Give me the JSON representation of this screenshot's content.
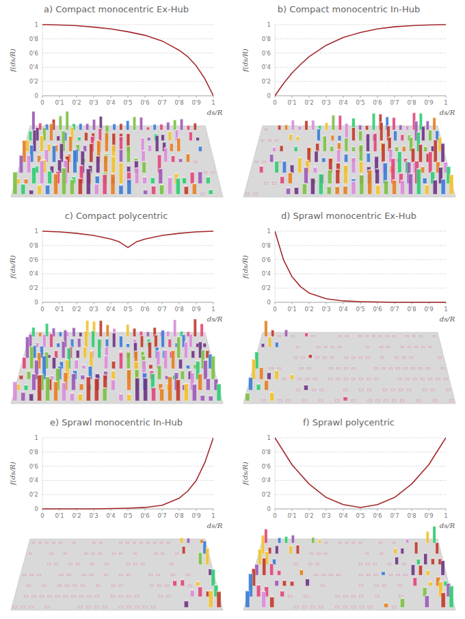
{
  "chart_data": [
    {
      "type": "line",
      "title": "a) Compact monocentric Ex-Hub",
      "x_label": "ds/R",
      "y_label": "f(ds/R)",
      "xlim": [
        0,
        1
      ],
      "ylim": [
        0,
        1
      ],
      "xticks": [
        0,
        {
          "value": 0.1,
          "label": "0'1"
        },
        {
          "value": 0.2,
          "label": "0'2"
        },
        {
          "value": 0.3,
          "label": "0'3"
        },
        {
          "value": 0.4,
          "label": "0'4"
        },
        {
          "value": 0.5,
          "label": "0'5"
        },
        {
          "value": 0.6,
          "label": "0'6"
        },
        {
          "value": 0.7,
          "label": "0'7"
        },
        {
          "value": 0.8,
          "label": "0'8"
        },
        {
          "value": 0.9,
          "label": "0'9"
        },
        1
      ],
      "yticks": [
        0,
        {
          "value": 0.2,
          "label": "0'2"
        },
        {
          "value": 0.4,
          "label": "0'4"
        },
        {
          "value": 0.6,
          "label": "0'6"
        },
        {
          "value": 0.8,
          "label": "0'8"
        },
        1
      ],
      "grid": true,
      "x": [
        0,
        0.1,
        0.2,
        0.3,
        0.4,
        0.5,
        0.6,
        0.7,
        0.8,
        0.85,
        0.9,
        0.95,
        1
      ],
      "series": [
        {
          "color": "#a3282b",
          "values": [
            1,
            0.995,
            0.985,
            0.965,
            0.94,
            0.9,
            0.85,
            0.77,
            0.64,
            0.55,
            0.42,
            0.24,
            0
          ]
        }
      ]
    },
    {
      "type": "line",
      "title": "b) Compact monocentric In-Hub",
      "x_label": "ds/R",
      "y_label": "f(ds/R)",
      "xlim": [
        0,
        1
      ],
      "ylim": [
        0,
        1
      ],
      "xticks": [
        0,
        {
          "value": 0.1,
          "label": "0'1"
        },
        {
          "value": 0.2,
          "label": "0'2"
        },
        {
          "value": 0.3,
          "label": "0'3"
        },
        {
          "value": 0.4,
          "label": "0'4"
        },
        {
          "value": 0.5,
          "label": "0'5"
        },
        {
          "value": 0.6,
          "label": "0'6"
        },
        {
          "value": 0.7,
          "label": "0'7"
        },
        {
          "value": 0.8,
          "label": "0'8"
        },
        {
          "value": 0.9,
          "label": "0'9"
        },
        1
      ],
      "yticks": [
        0,
        {
          "value": 0.2,
          "label": "0'2"
        },
        {
          "value": 0.4,
          "label": "0'4"
        },
        {
          "value": 0.6,
          "label": "0'6"
        },
        {
          "value": 0.8,
          "label": "0'8"
        },
        1
      ],
      "grid": true,
      "x": [
        0,
        0.05,
        0.1,
        0.15,
        0.2,
        0.3,
        0.4,
        0.5,
        0.6,
        0.7,
        0.8,
        0.9,
        1
      ],
      "series": [
        {
          "color": "#a3282b",
          "values": [
            0,
            0.17,
            0.32,
            0.44,
            0.55,
            0.71,
            0.82,
            0.89,
            0.94,
            0.97,
            0.985,
            0.995,
            1
          ]
        }
      ]
    },
    {
      "type": "line",
      "title": "c) Compact polycentric",
      "x_label": "ds/R",
      "y_label": "f(ds/R)",
      "xlim": [
        0,
        1
      ],
      "ylim": [
        0,
        1
      ],
      "xticks": [
        0,
        {
          "value": 0.1,
          "label": "0'1"
        },
        {
          "value": 0.2,
          "label": "0'2"
        },
        {
          "value": 0.3,
          "label": "0'3"
        },
        {
          "value": 0.4,
          "label": "0'4"
        },
        {
          "value": 0.5,
          "label": "0'5"
        },
        {
          "value": 0.6,
          "label": "0'6"
        },
        {
          "value": 0.7,
          "label": "0'7"
        },
        {
          "value": 0.8,
          "label": "0'8"
        },
        {
          "value": 0.9,
          "label": "0'9"
        },
        1
      ],
      "yticks": [
        0,
        {
          "value": 0.2,
          "label": "0'2"
        },
        {
          "value": 0.4,
          "label": "0'4"
        },
        {
          "value": 0.6,
          "label": "0'6"
        },
        {
          "value": 0.8,
          "label": "0'8"
        },
        1
      ],
      "grid": true,
      "x": [
        0,
        0.1,
        0.2,
        0.3,
        0.4,
        0.45,
        0.5,
        0.55,
        0.6,
        0.7,
        0.8,
        0.9,
        1
      ],
      "series": [
        {
          "color": "#a3282b",
          "values": [
            1,
            0.99,
            0.97,
            0.94,
            0.89,
            0.85,
            0.77,
            0.85,
            0.89,
            0.94,
            0.97,
            0.99,
            1
          ]
        }
      ]
    },
    {
      "type": "line",
      "title": "d) Sprawl monocentric Ex-Hub",
      "x_label": "ds/R",
      "y_label": "f(ds/R)",
      "xlim": [
        0,
        1
      ],
      "ylim": [
        0,
        1
      ],
      "xticks": [
        0,
        {
          "value": 0.1,
          "label": "0'1"
        },
        {
          "value": 0.2,
          "label": "0'2"
        },
        {
          "value": 0.3,
          "label": "0'3"
        },
        {
          "value": 0.4,
          "label": "0'4"
        },
        {
          "value": 0.5,
          "label": "0'5"
        },
        {
          "value": 0.6,
          "label": "0'6"
        },
        {
          "value": 0.7,
          "label": "0'7"
        },
        {
          "value": 0.8,
          "label": "0'8"
        },
        {
          "value": 0.9,
          "label": "0'9"
        },
        1
      ],
      "yticks": [
        0,
        {
          "value": 0.2,
          "label": "0'2"
        },
        {
          "value": 0.4,
          "label": "0'4"
        },
        {
          "value": 0.6,
          "label": "0'6"
        },
        {
          "value": 0.8,
          "label": "0'8"
        },
        1
      ],
      "grid": true,
      "x": [
        0,
        0.05,
        0.1,
        0.15,
        0.2,
        0.3,
        0.4,
        0.5,
        0.6,
        0.7,
        0.8,
        0.9,
        1
      ],
      "series": [
        {
          "color": "#a3282b",
          "values": [
            1,
            0.6,
            0.36,
            0.22,
            0.13,
            0.05,
            0.02,
            0.01,
            0.005,
            0,
            0,
            0,
            0
          ]
        }
      ]
    },
    {
      "type": "line",
      "title": "e) Sprawl monocentric In-Hub",
      "x_label": "ds/R",
      "y_label": "f(ds/R)",
      "xlim": [
        0,
        1
      ],
      "ylim": [
        0,
        1
      ],
      "xticks": [
        0,
        {
          "value": 0.1,
          "label": "0'1"
        },
        {
          "value": 0.2,
          "label": "0'2"
        },
        {
          "value": 0.3,
          "label": "0'3"
        },
        {
          "value": 0.4,
          "label": "0'4"
        },
        {
          "value": 0.5,
          "label": "0'5"
        },
        {
          "value": 0.6,
          "label": "0'6"
        },
        {
          "value": 0.7,
          "label": "0'7"
        },
        {
          "value": 0.8,
          "label": "0'8"
        },
        {
          "value": 0.9,
          "label": "0'9"
        },
        1
      ],
      "yticks": [
        0,
        {
          "value": 0.2,
          "label": "0'2"
        },
        {
          "value": 0.4,
          "label": "0'4"
        },
        {
          "value": 0.6,
          "label": "0'6"
        },
        {
          "value": 0.8,
          "label": "0'8"
        },
        1
      ],
      "grid": true,
      "x": [
        0,
        0.1,
        0.2,
        0.3,
        0.4,
        0.5,
        0.6,
        0.7,
        0.8,
        0.85,
        0.9,
        0.95,
        1
      ],
      "series": [
        {
          "color": "#a3282b",
          "values": [
            0,
            0,
            0,
            0,
            0.005,
            0.01,
            0.02,
            0.05,
            0.15,
            0.25,
            0.4,
            0.65,
            1
          ]
        }
      ]
    },
    {
      "type": "line",
      "title": "f) Sprawl polycentric",
      "x_label": "ds/R",
      "y_label": "f(ds/R)",
      "xlim": [
        0,
        1
      ],
      "ylim": [
        0,
        1
      ],
      "xticks": [
        0,
        {
          "value": 0.1,
          "label": "0'1"
        },
        {
          "value": 0.2,
          "label": "0'2"
        },
        {
          "value": 0.3,
          "label": "0'3"
        },
        {
          "value": 0.4,
          "label": "0'4"
        },
        {
          "value": 0.5,
          "label": "0'5"
        },
        {
          "value": 0.6,
          "label": "0'6"
        },
        {
          "value": 0.7,
          "label": "0'7"
        },
        {
          "value": 0.8,
          "label": "0'8"
        },
        {
          "value": 0.9,
          "label": "0'9"
        },
        1
      ],
      "yticks": [
        0,
        {
          "value": 0.2,
          "label": "0'2"
        },
        {
          "value": 0.4,
          "label": "0'4"
        },
        {
          "value": 0.6,
          "label": "0'6"
        },
        {
          "value": 0.8,
          "label": "0'8"
        },
        1
      ],
      "grid": true,
      "x": [
        0,
        0.1,
        0.2,
        0.3,
        0.4,
        0.5,
        0.6,
        0.7,
        0.8,
        0.9,
        1
      ],
      "series": [
        {
          "color": "#a3282b",
          "values": [
            1,
            0.62,
            0.35,
            0.16,
            0.06,
            0.02,
            0.06,
            0.16,
            0.35,
            0.62,
            1
          ]
        }
      ]
    }
  ]
}
